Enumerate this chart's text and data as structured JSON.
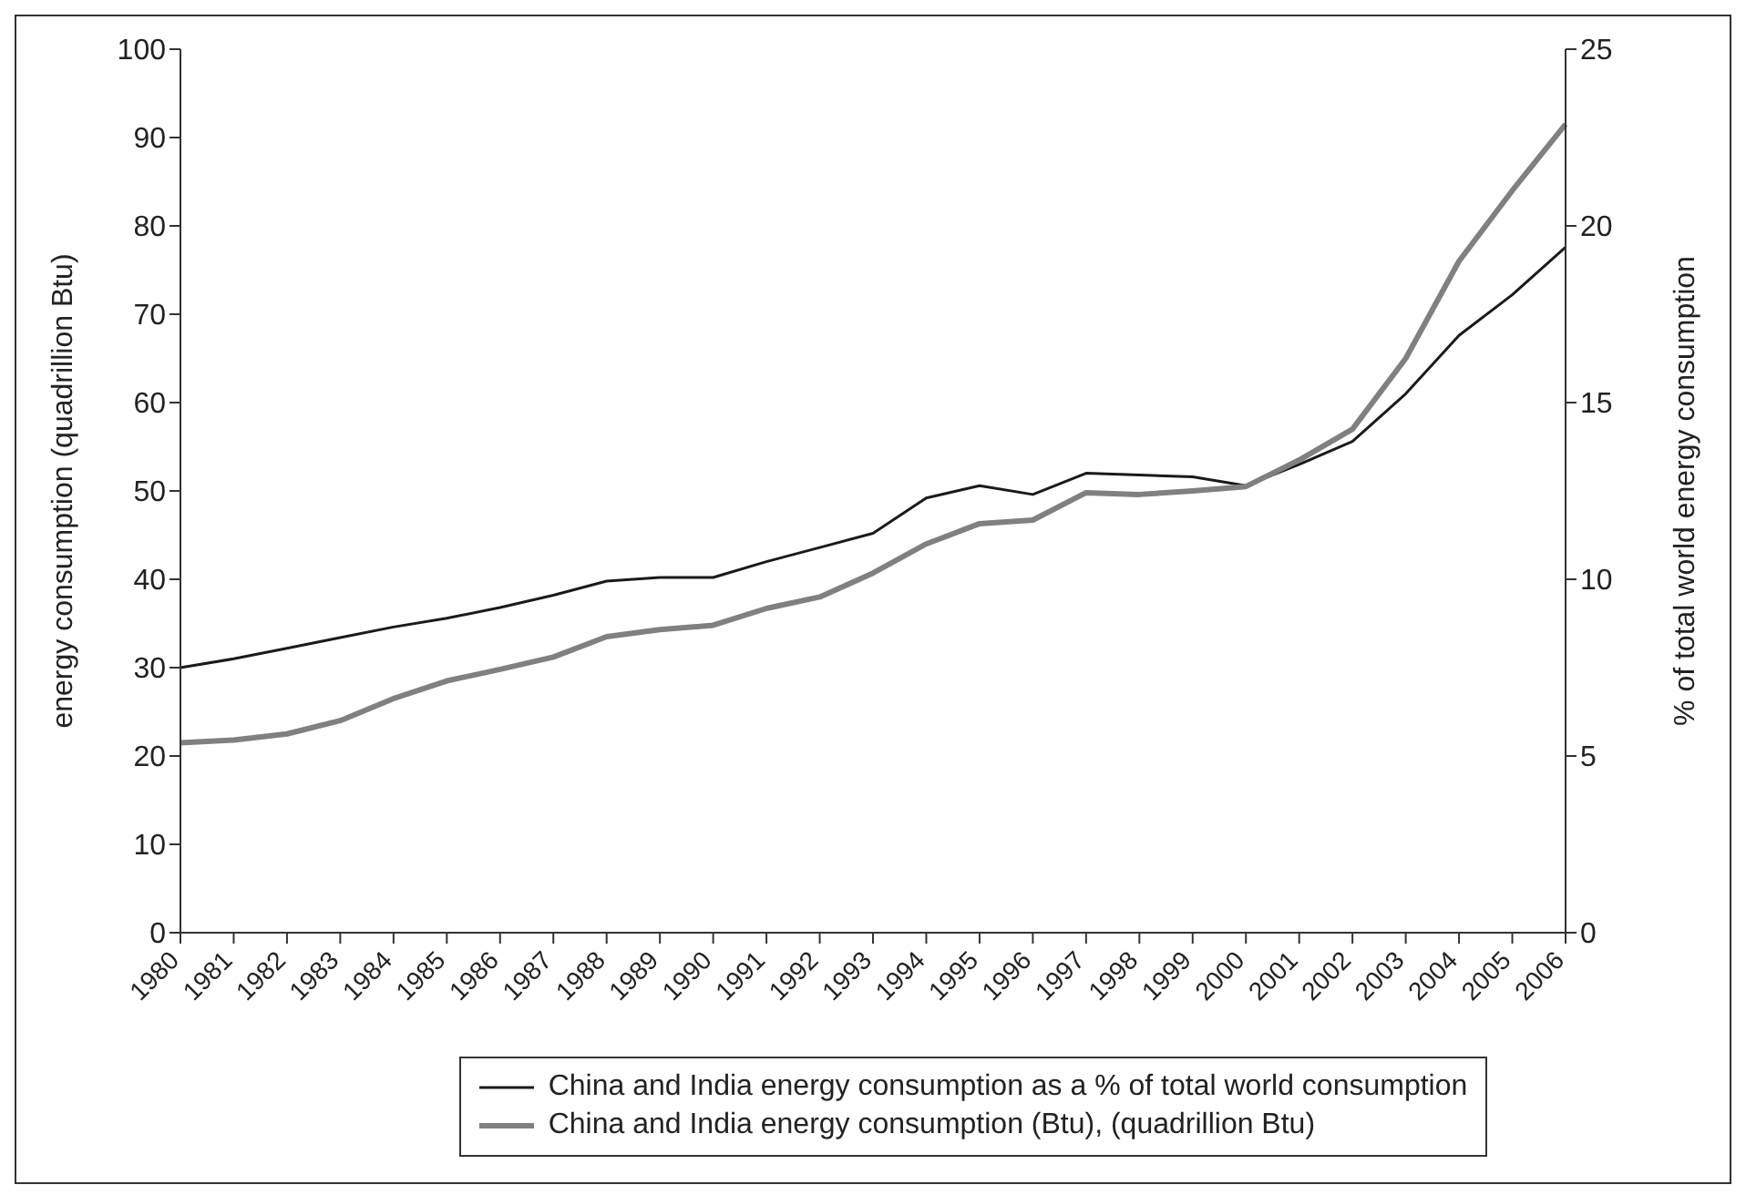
{
  "chart_data": {
    "type": "line",
    "categories": [
      "1980",
      "1981",
      "1982",
      "1983",
      "1984",
      "1985",
      "1986",
      "1987",
      "1988",
      "1989",
      "1990",
      "1991",
      "1992",
      "1993",
      "1994",
      "1995",
      "1996",
      "1997",
      "1998",
      "1999",
      "2000",
      "2001",
      "2002",
      "2003",
      "2004",
      "2005",
      "2006"
    ],
    "ylabel": "energy consumption (quadrillion Btu)",
    "y2label": "% of total world energy consumption",
    "ylim": [
      0,
      100
    ],
    "yticks": [
      0,
      10,
      20,
      30,
      40,
      50,
      60,
      70,
      80,
      90,
      100
    ],
    "y2lim": [
      0,
      25
    ],
    "y2ticks": [
      0,
      5,
      10,
      15,
      20,
      25
    ],
    "legend": "bottom",
    "series": [
      {
        "name": "China and India energy consumption as a % of total world consumption",
        "color": "#1a1a1a",
        "axis": "y2",
        "values": [
          7.5,
          7.75,
          8.05,
          8.35,
          8.65,
          8.9,
          9.2,
          9.55,
          9.95,
          10.05,
          10.05,
          10.5,
          10.9,
          11.3,
          12.3,
          12.65,
          12.4,
          13.0,
          12.95,
          12.9,
          12.65,
          13.25,
          13.9,
          15.25,
          16.9,
          18.05,
          19.4
        ]
      },
      {
        "name": "China and India energy consumption (Btu), (quadrillion Btu)",
        "color": "#808080",
        "values": [
          21.5,
          21.8,
          22.5,
          24,
          26.5,
          28.5,
          29.8,
          31.2,
          33.5,
          34.3,
          34.8,
          36.7,
          38,
          40.7,
          44,
          46.3,
          46.7,
          49.8,
          49.6,
          50,
          50.5,
          53.5,
          57,
          65,
          76,
          84,
          91.5
        ]
      }
    ]
  }
}
